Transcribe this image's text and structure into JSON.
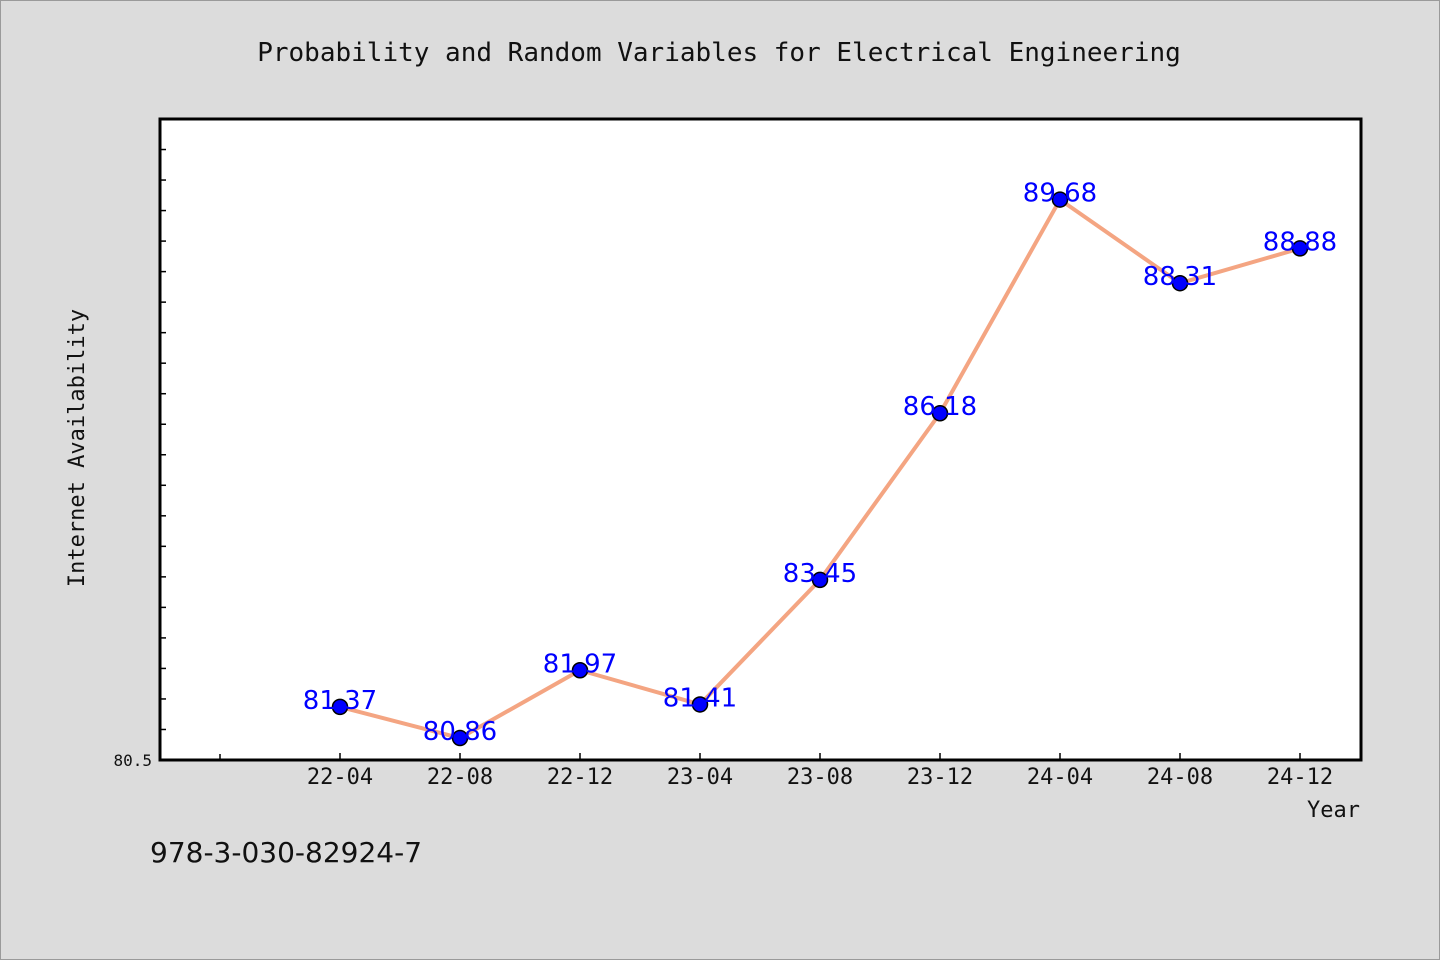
{
  "footer_text": "978-3-030-82924-7",
  "colors": {
    "background": "#dcdcdc",
    "plot_background": "#ffffff",
    "line": "#f4a582",
    "marker": "#0000ff",
    "data_label": "#0000ff"
  },
  "chart_data": {
    "type": "line",
    "title": "Probability and Random Variables for Electrical Engineering",
    "xlabel": "Year",
    "ylabel": "Internet Availability",
    "categories": [
      "22-04",
      "22-08",
      "22-12",
      "23-04",
      "23-08",
      "23-12",
      "24-04",
      "24-08",
      "24-12"
    ],
    "values": [
      81.37,
      80.86,
      81.97,
      81.41,
      83.45,
      86.18,
      89.68,
      88.31,
      88.88
    ],
    "data_labels": [
      "81.37",
      "80.86",
      "81.97",
      "81.41",
      "83.45",
      "86.18",
      "89.68",
      "88.31",
      "88.88"
    ],
    "ylim": [
      80.5,
      91.0
    ],
    "y_tick_label": "80.5",
    "grid": false,
    "legend": "none",
    "marker": "circle"
  }
}
